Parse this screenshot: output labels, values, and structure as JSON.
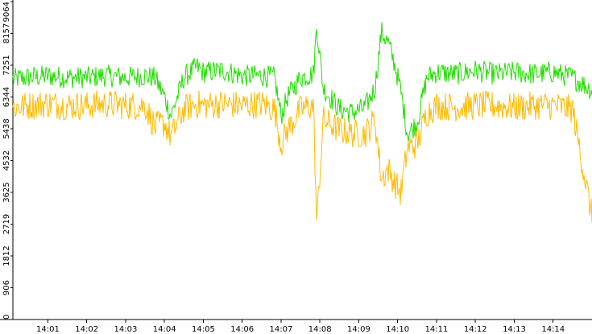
{
  "chart_data": {
    "type": "line",
    "title": "",
    "xlabel": "",
    "ylabel": "",
    "ylim": [
      0,
      9064
    ],
    "y_ticks": [
      0,
      906,
      1812,
      2719,
      3625,
      4532,
      5438,
      6344,
      7251,
      8157,
      9064
    ],
    "y_tick_labels": [
      "0",
      "906",
      "1812",
      "2719",
      "3625",
      "4532",
      "5438",
      "6344",
      "7251",
      "8157",
      "9064"
    ],
    "x_range": [
      "14:00:06",
      "14:15:00"
    ],
    "x_tick_labels": [
      "14:01",
      "14:02",
      "14:03",
      "14:04",
      "14:05",
      "14:06",
      "14:07",
      "14:08",
      "14:09",
      "14:10",
      "14:11",
      "14:12",
      "14:13",
      "14:14"
    ],
    "grid": false,
    "legend": "none",
    "series": [
      {
        "color": "#22dd00",
        "x": [
          "14:00:06",
          "14:00:30",
          "14:01:00",
          "14:01:30",
          "14:02:00",
          "14:02:30",
          "14:03:00",
          "14:03:30",
          "14:03:45",
          "14:04:00",
          "14:04:10",
          "14:04:30",
          "14:04:50",
          "14:05:00",
          "14:05:30",
          "14:06:00",
          "14:06:30",
          "14:06:50",
          "14:07:00",
          "14:07:10",
          "14:07:30",
          "14:07:50",
          "14:07:55",
          "14:08:05",
          "14:08:30",
          "14:08:50",
          "14:09:10",
          "14:09:25",
          "14:09:35",
          "14:09:45",
          "14:09:55",
          "14:10:05",
          "14:10:15",
          "14:10:30",
          "14:10:45",
          "14:11:00",
          "14:11:30",
          "14:12:00",
          "14:12:30",
          "14:13:00",
          "14:13:30",
          "14:14:00",
          "14:14:30",
          "14:15:00"
        ],
        "y": [
          6850,
          6900,
          6950,
          6900,
          6900,
          6950,
          6900,
          6950,
          6900,
          6350,
          5800,
          6900,
          7200,
          7050,
          7100,
          6950,
          6950,
          6900,
          5800,
          6350,
          6900,
          7000,
          8400,
          6600,
          6000,
          5900,
          6050,
          6600,
          8200,
          7900,
          7300,
          6500,
          5300,
          5600,
          6900,
          7050,
          7000,
          7100,
          7000,
          7050,
          7000,
          7050,
          6900,
          6550
        ]
      },
      {
        "color": "#ffbb00",
        "x": [
          "14:00:06",
          "14:00:30",
          "14:01:00",
          "14:01:30",
          "14:02:00",
          "14:02:30",
          "14:03:00",
          "14:03:30",
          "14:03:45",
          "14:04:00",
          "14:04:10",
          "14:04:30",
          "14:04:50",
          "14:05:00",
          "14:05:30",
          "14:06:00",
          "14:06:30",
          "14:06:50",
          "14:07:00",
          "14:07:10",
          "14:07:30",
          "14:07:50",
          "14:07:55",
          "14:08:05",
          "14:08:30",
          "14:08:50",
          "14:09:10",
          "14:09:25",
          "14:09:35",
          "14:09:45",
          "14:09:55",
          "14:10:05",
          "14:10:15",
          "14:10:30",
          "14:10:45",
          "14:11:00",
          "14:11:30",
          "14:12:00",
          "14:12:30",
          "14:13:00",
          "14:13:30",
          "14:14:00",
          "14:14:30",
          "14:15:00"
        ],
        "y": [
          6050,
          6100,
          6150,
          6100,
          6100,
          6150,
          6100,
          6100,
          5500,
          5600,
          5200,
          6000,
          6150,
          6100,
          6150,
          6100,
          6150,
          6000,
          5000,
          5400,
          6000,
          6100,
          2700,
          5700,
          5400,
          5300,
          5300,
          5700,
          4000,
          4300,
          3900,
          3600,
          4900,
          5000,
          5900,
          6100,
          6050,
          6100,
          6100,
          6050,
          6100,
          6100,
          6000,
          2900
        ]
      }
    ]
  }
}
